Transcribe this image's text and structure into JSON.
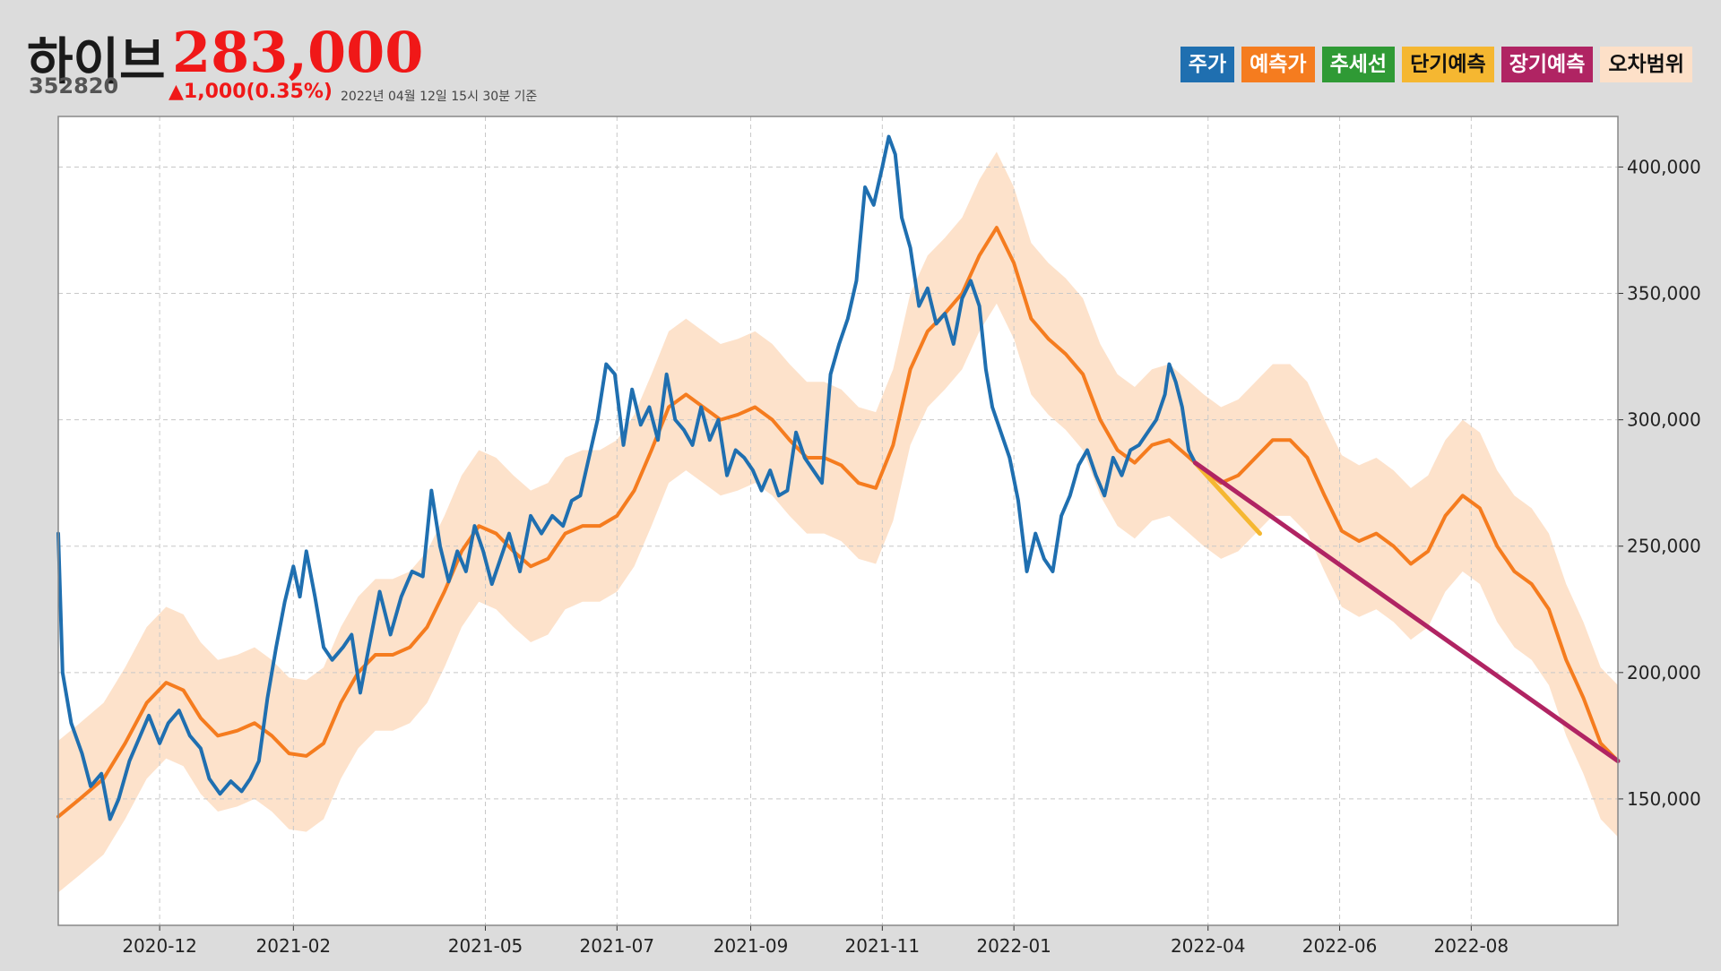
{
  "header": {
    "name": "하이브",
    "price": "283,000",
    "code": "352820",
    "change": "▲1,000(0.35%)",
    "timestamp": "2022년 04월 12일 15시 30분 기준"
  },
  "legend": [
    {
      "label": "주가",
      "bg": "#1f6fb0",
      "fg": "#ffffff"
    },
    {
      "label": "예측가",
      "bg": "#f57c1f",
      "fg": "#ffffff"
    },
    {
      "label": "추세선",
      "bg": "#2f9a35",
      "fg": "#ffffff"
    },
    {
      "label": "단기예측",
      "bg": "#f5b731",
      "fg": "#111111"
    },
    {
      "label": "장기예측",
      "bg": "#b02463",
      "fg": "#ffffff"
    },
    {
      "label": "오차범위",
      "bg": "#fde0c8",
      "fg": "#111111"
    }
  ],
  "chart_data": {
    "type": "line",
    "x_range": [
      "2020-10-15",
      "2022-10-08"
    ],
    "ylim": [
      100000,
      420000
    ],
    "y_ticks": [
      150000,
      200000,
      250000,
      300000,
      350000,
      400000
    ],
    "y_tick_labels": [
      "150,000",
      "200,000",
      "250,000",
      "300,000",
      "350,000",
      "400,000"
    ],
    "x_ticks": [
      "2020-12-01",
      "2021-02-01",
      "2021-05-01",
      "2021-07-01",
      "2021-09-01",
      "2021-11-01",
      "2022-01-01",
      "2022-04-01",
      "2022-06-01",
      "2022-08-01"
    ],
    "x_tick_labels": [
      "2020-12",
      "2021-02",
      "2021-05",
      "2021-07",
      "2021-09",
      "2021-11",
      "2022-01",
      "2022-04",
      "2022-06",
      "2022-08"
    ],
    "y_axis_position": "right",
    "grid": true,
    "colors": {
      "price": "#1f6fb0",
      "predicted": "#f57c1f",
      "short_term": "#f5b731",
      "long_term": "#b02463",
      "band": "#fde0c8"
    },
    "series": [
      {
        "name": "주가",
        "points": [
          [
            "2020-10-15",
            255000
          ],
          [
            "2020-10-17",
            200000
          ],
          [
            "2020-10-21",
            180000
          ],
          [
            "2020-10-26",
            168000
          ],
          [
            "2020-10-30",
            155000
          ],
          [
            "2020-11-04",
            160000
          ],
          [
            "2020-11-08",
            142000
          ],
          [
            "2020-11-12",
            150000
          ],
          [
            "2020-11-17",
            165000
          ],
          [
            "2020-11-22",
            175000
          ],
          [
            "2020-11-26",
            183000
          ],
          [
            "2020-12-01",
            172000
          ],
          [
            "2020-12-05",
            180000
          ],
          [
            "2020-12-10",
            185000
          ],
          [
            "2020-12-15",
            175000
          ],
          [
            "2020-12-20",
            170000
          ],
          [
            "2020-12-24",
            158000
          ],
          [
            "2020-12-29",
            152000
          ],
          [
            "2021-01-03",
            157000
          ],
          [
            "2021-01-08",
            153000
          ],
          [
            "2021-01-12",
            158000
          ],
          [
            "2021-01-16",
            165000
          ],
          [
            "2021-01-20",
            190000
          ],
          [
            "2021-01-24",
            210000
          ],
          [
            "2021-01-28",
            228000
          ],
          [
            "2021-02-01",
            242000
          ],
          [
            "2021-02-04",
            230000
          ],
          [
            "2021-02-07",
            248000
          ],
          [
            "2021-02-11",
            230000
          ],
          [
            "2021-02-15",
            210000
          ],
          [
            "2021-02-19",
            205000
          ],
          [
            "2021-02-24",
            210000
          ],
          [
            "2021-02-28",
            215000
          ],
          [
            "2021-03-04",
            192000
          ],
          [
            "2021-03-08",
            210000
          ],
          [
            "2021-03-13",
            232000
          ],
          [
            "2021-03-18",
            215000
          ],
          [
            "2021-03-23",
            230000
          ],
          [
            "2021-03-28",
            240000
          ],
          [
            "2021-04-02",
            238000
          ],
          [
            "2021-04-06",
            272000
          ],
          [
            "2021-04-10",
            250000
          ],
          [
            "2021-04-14",
            236000
          ],
          [
            "2021-04-18",
            248000
          ],
          [
            "2021-04-22",
            240000
          ],
          [
            "2021-04-26",
            258000
          ],
          [
            "2021-04-30",
            248000
          ],
          [
            "2021-05-04",
            235000
          ],
          [
            "2021-05-08",
            245000
          ],
          [
            "2021-05-12",
            255000
          ],
          [
            "2021-05-17",
            240000
          ],
          [
            "2021-05-22",
            262000
          ],
          [
            "2021-05-27",
            255000
          ],
          [
            "2021-06-01",
            262000
          ],
          [
            "2021-06-06",
            258000
          ],
          [
            "2021-06-10",
            268000
          ],
          [
            "2021-06-14",
            270000
          ],
          [
            "2021-06-18",
            285000
          ],
          [
            "2021-06-22",
            300000
          ],
          [
            "2021-06-26",
            322000
          ],
          [
            "2021-06-30",
            318000
          ],
          [
            "2021-07-04",
            290000
          ],
          [
            "2021-07-08",
            312000
          ],
          [
            "2021-07-12",
            298000
          ],
          [
            "2021-07-16",
            305000
          ],
          [
            "2021-07-20",
            292000
          ],
          [
            "2021-07-24",
            318000
          ],
          [
            "2021-07-28",
            300000
          ],
          [
            "2021-08-01",
            296000
          ],
          [
            "2021-08-05",
            290000
          ],
          [
            "2021-08-09",
            305000
          ],
          [
            "2021-08-13",
            292000
          ],
          [
            "2021-08-17",
            300000
          ],
          [
            "2021-08-21",
            278000
          ],
          [
            "2021-08-25",
            288000
          ],
          [
            "2021-08-29",
            285000
          ],
          [
            "2021-09-02",
            280000
          ],
          [
            "2021-09-06",
            272000
          ],
          [
            "2021-09-10",
            280000
          ],
          [
            "2021-09-14",
            270000
          ],
          [
            "2021-09-18",
            272000
          ],
          [
            "2021-09-22",
            295000
          ],
          [
            "2021-09-26",
            285000
          ],
          [
            "2021-09-30",
            280000
          ],
          [
            "2021-10-04",
            275000
          ],
          [
            "2021-10-08",
            318000
          ],
          [
            "2021-10-12",
            330000
          ],
          [
            "2021-10-16",
            340000
          ],
          [
            "2021-10-20",
            355000
          ],
          [
            "2021-10-24",
            392000
          ],
          [
            "2021-10-28",
            385000
          ],
          [
            "2021-11-01",
            400000
          ],
          [
            "2021-11-04",
            412000
          ],
          [
            "2021-11-07",
            405000
          ],
          [
            "2021-11-10",
            380000
          ],
          [
            "2021-11-14",
            368000
          ],
          [
            "2021-11-18",
            345000
          ],
          [
            "2021-11-22",
            352000
          ],
          [
            "2021-11-26",
            338000
          ],
          [
            "2021-11-30",
            342000
          ],
          [
            "2021-12-04",
            330000
          ],
          [
            "2021-12-08",
            348000
          ],
          [
            "2021-12-12",
            355000
          ],
          [
            "2021-12-16",
            345000
          ],
          [
            "2021-12-19",
            320000
          ],
          [
            "2021-12-22",
            305000
          ],
          [
            "2021-12-26",
            295000
          ],
          [
            "2021-12-30",
            285000
          ],
          [
            "2022-01-03",
            268000
          ],
          [
            "2022-01-07",
            240000
          ],
          [
            "2022-01-11",
            255000
          ],
          [
            "2022-01-15",
            245000
          ],
          [
            "2022-01-19",
            240000
          ],
          [
            "2022-01-23",
            262000
          ],
          [
            "2022-01-27",
            270000
          ],
          [
            "2022-01-31",
            282000
          ],
          [
            "2022-02-04",
            288000
          ],
          [
            "2022-02-08",
            278000
          ],
          [
            "2022-02-12",
            270000
          ],
          [
            "2022-02-16",
            285000
          ],
          [
            "2022-02-20",
            278000
          ],
          [
            "2022-02-24",
            288000
          ],
          [
            "2022-02-28",
            290000
          ],
          [
            "2022-03-04",
            295000
          ],
          [
            "2022-03-08",
            300000
          ],
          [
            "2022-03-12",
            310000
          ],
          [
            "2022-03-14",
            322000
          ],
          [
            "2022-03-17",
            315000
          ],
          [
            "2022-03-20",
            305000
          ],
          [
            "2022-03-23",
            288000
          ],
          [
            "2022-03-26",
            283000
          ]
        ]
      },
      {
        "name": "예측가",
        "points": [
          [
            "2020-10-15",
            143000
          ],
          [
            "2020-10-25",
            150000
          ],
          [
            "2020-11-05",
            158000
          ],
          [
            "2020-11-15",
            172000
          ],
          [
            "2020-11-25",
            188000
          ],
          [
            "2020-12-04",
            196000
          ],
          [
            "2020-12-12",
            193000
          ],
          [
            "2020-12-20",
            182000
          ],
          [
            "2020-12-28",
            175000
          ],
          [
            "2021-01-06",
            177000
          ],
          [
            "2021-01-14",
            180000
          ],
          [
            "2021-01-22",
            175000
          ],
          [
            "2021-01-30",
            168000
          ],
          [
            "2021-02-07",
            167000
          ],
          [
            "2021-02-15",
            172000
          ],
          [
            "2021-02-23",
            188000
          ],
          [
            "2021-03-03",
            200000
          ],
          [
            "2021-03-11",
            207000
          ],
          [
            "2021-03-19",
            207000
          ],
          [
            "2021-03-27",
            210000
          ],
          [
            "2021-04-04",
            218000
          ],
          [
            "2021-04-12",
            232000
          ],
          [
            "2021-04-20",
            248000
          ],
          [
            "2021-04-28",
            258000
          ],
          [
            "2021-05-06",
            255000
          ],
          [
            "2021-05-14",
            248000
          ],
          [
            "2021-05-22",
            242000
          ],
          [
            "2021-05-30",
            245000
          ],
          [
            "2021-06-07",
            255000
          ],
          [
            "2021-06-15",
            258000
          ],
          [
            "2021-06-23",
            258000
          ],
          [
            "2021-07-01",
            262000
          ],
          [
            "2021-07-09",
            272000
          ],
          [
            "2021-07-17",
            288000
          ],
          [
            "2021-07-25",
            305000
          ],
          [
            "2021-08-02",
            310000
          ],
          [
            "2021-08-10",
            305000
          ],
          [
            "2021-08-18",
            300000
          ],
          [
            "2021-08-26",
            302000
          ],
          [
            "2021-09-03",
            305000
          ],
          [
            "2021-09-11",
            300000
          ],
          [
            "2021-09-19",
            292000
          ],
          [
            "2021-09-27",
            285000
          ],
          [
            "2021-10-05",
            285000
          ],
          [
            "2021-10-13",
            282000
          ],
          [
            "2021-10-21",
            275000
          ],
          [
            "2021-10-29",
            273000
          ],
          [
            "2021-11-06",
            290000
          ],
          [
            "2021-11-14",
            320000
          ],
          [
            "2021-11-22",
            335000
          ],
          [
            "2021-11-30",
            342000
          ],
          [
            "2021-12-08",
            350000
          ],
          [
            "2021-12-16",
            365000
          ],
          [
            "2021-12-24",
            376000
          ],
          [
            "2022-01-01",
            362000
          ],
          [
            "2022-01-09",
            340000
          ],
          [
            "2022-01-17",
            332000
          ],
          [
            "2022-01-25",
            326000
          ],
          [
            "2022-02-02",
            318000
          ],
          [
            "2022-02-10",
            300000
          ],
          [
            "2022-02-18",
            288000
          ],
          [
            "2022-02-26",
            283000
          ],
          [
            "2022-03-06",
            290000
          ],
          [
            "2022-03-14",
            292000
          ],
          [
            "2022-03-22",
            286000
          ],
          [
            "2022-03-30",
            280000
          ],
          [
            "2022-04-07",
            275000
          ],
          [
            "2022-04-15",
            278000
          ],
          [
            "2022-04-23",
            285000
          ],
          [
            "2022-05-01",
            292000
          ],
          [
            "2022-05-09",
            292000
          ],
          [
            "2022-05-17",
            285000
          ],
          [
            "2022-05-25",
            270000
          ],
          [
            "2022-06-02",
            256000
          ],
          [
            "2022-06-10",
            252000
          ],
          [
            "2022-06-18",
            255000
          ],
          [
            "2022-06-26",
            250000
          ],
          [
            "2022-07-04",
            243000
          ],
          [
            "2022-07-12",
            248000
          ],
          [
            "2022-07-20",
            262000
          ],
          [
            "2022-07-28",
            270000
          ],
          [
            "2022-08-05",
            265000
          ],
          [
            "2022-08-13",
            250000
          ],
          [
            "2022-08-21",
            240000
          ],
          [
            "2022-08-29",
            235000
          ],
          [
            "2022-09-06",
            225000
          ],
          [
            "2022-09-14",
            205000
          ],
          [
            "2022-09-22",
            190000
          ],
          [
            "2022-09-30",
            172000
          ],
          [
            "2022-10-08",
            165000
          ]
        ]
      },
      {
        "name": "단기예측",
        "points": [
          [
            "2022-03-26",
            283000
          ],
          [
            "2022-04-25",
            255000
          ]
        ]
      },
      {
        "name": "장기예측",
        "points": [
          [
            "2022-03-26",
            283000
          ],
          [
            "2022-10-08",
            165000
          ]
        ]
      },
      {
        "name": "오차범위",
        "band_width": 30000
      }
    ]
  }
}
